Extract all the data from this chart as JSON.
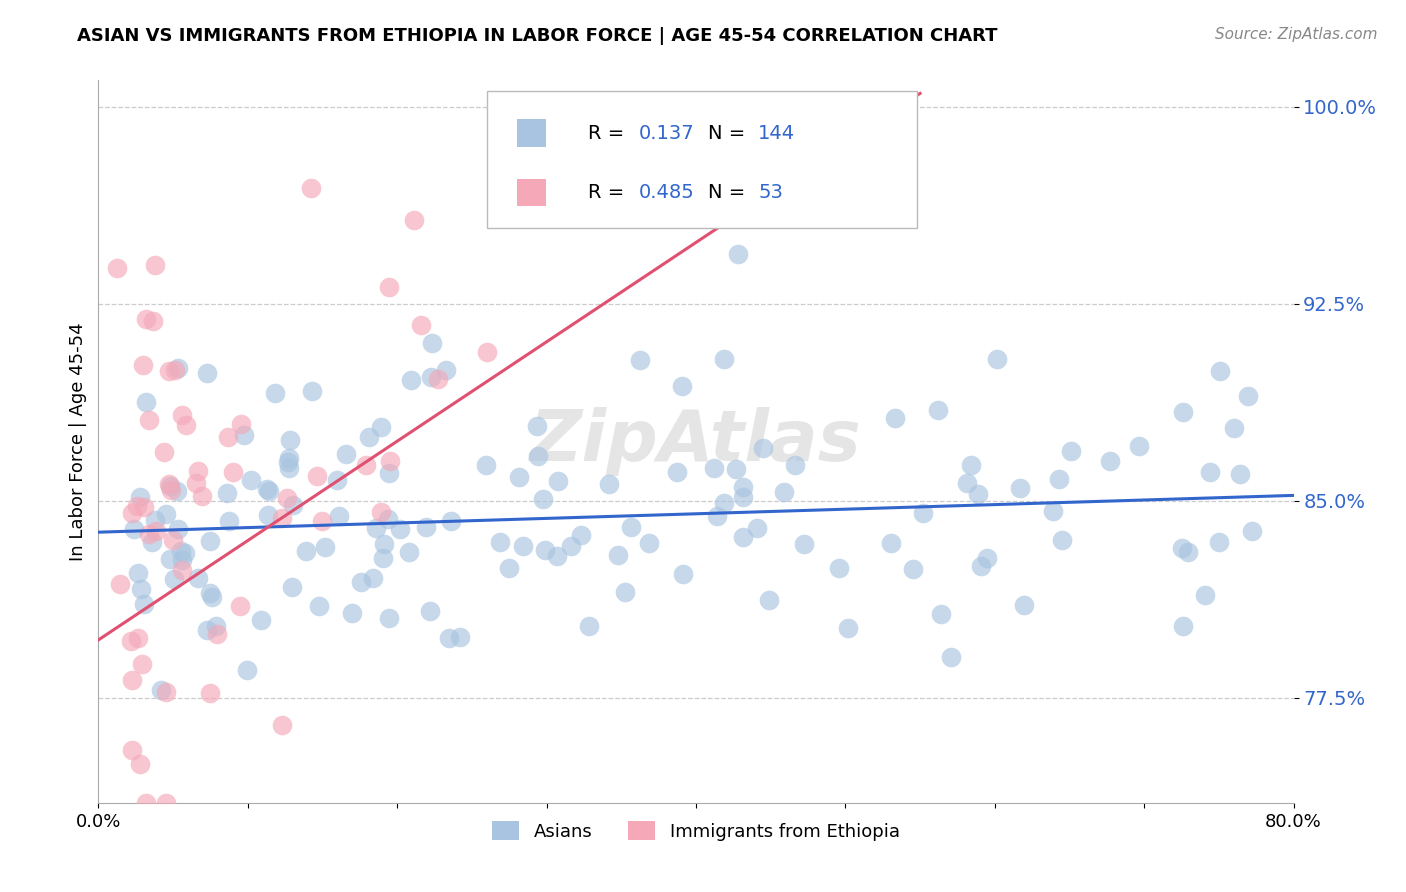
{
  "title": "ASIAN VS IMMIGRANTS FROM ETHIOPIA IN LABOR FORCE | AGE 45-54 CORRELATION CHART",
  "source": "Source: ZipAtlas.com",
  "ylabel": "In Labor Force | Age 45-54",
  "xlim": [
    0.0,
    0.8
  ],
  "ylim": [
    0.735,
    1.01
  ],
  "yticks": [
    0.775,
    0.85,
    0.925,
    1.0
  ],
  "ytick_labels": [
    "77.5%",
    "85.0%",
    "92.5%",
    "100.0%"
  ],
  "blue_color": "#A8C4E0",
  "pink_color": "#F4A8B8",
  "blue_line_color": "#3366CC",
  "pink_line_color": "#E05070",
  "legend_blue_label": "Asians",
  "legend_pink_label": "Immigrants from Ethiopia",
  "R_blue": 0.137,
  "N_blue": 144,
  "R_pink": 0.485,
  "N_pink": 53,
  "watermark": "ZipAtlas",
  "text_color_blue": "#3366CC",
  "text_color_black": "#222222",
  "text_color_source": "#888888",
  "blue_trend_x": [
    0.0,
    0.8
  ],
  "blue_trend_y": [
    0.838,
    0.852
  ],
  "pink_trend_x": [
    0.0,
    0.55
  ],
  "pink_trend_y": [
    0.797,
    1.005
  ]
}
